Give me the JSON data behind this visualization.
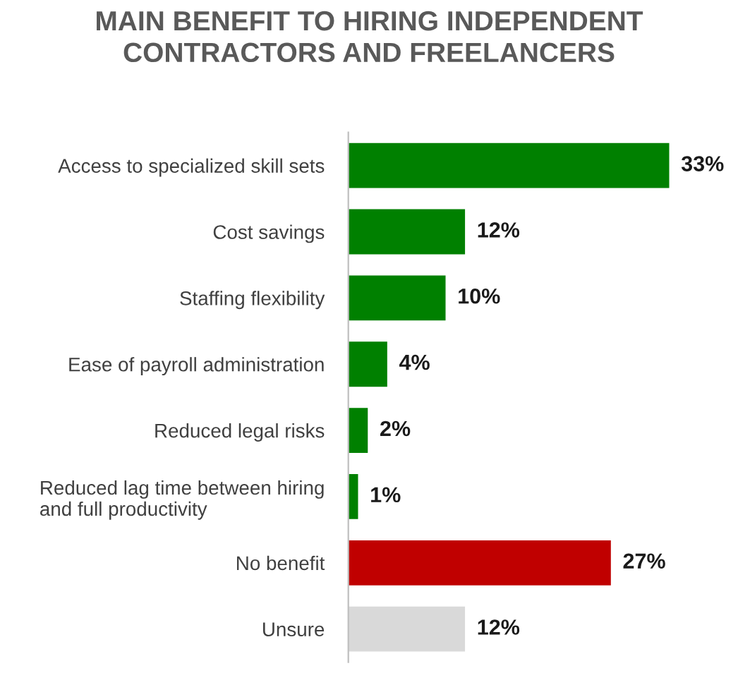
{
  "chart_data": {
    "type": "bar",
    "orientation": "horizontal",
    "title": "MAIN BENEFIT TO HIRING INDEPENDENT\nCONTRACTORS AND FREELANCERS",
    "categories": [
      "Access to specialized skill sets",
      "Cost savings",
      "Staffing flexibility",
      "Ease of payroll administration",
      "Reduced legal risks",
      "Reduced lag time between hiring\nand full productivity",
      "No benefit",
      "Unsure"
    ],
    "values": [
      33,
      12,
      10,
      4,
      2,
      1,
      27,
      12
    ],
    "colors": [
      "#008000",
      "#008000",
      "#008000",
      "#008000",
      "#008000",
      "#008000",
      "#c00000",
      "#d9d9d9"
    ],
    "value_labels": [
      "33%",
      "12%",
      "10%",
      "4%",
      "2%",
      "1%",
      "27%",
      "12%"
    ],
    "grid": false,
    "legend": false
  }
}
